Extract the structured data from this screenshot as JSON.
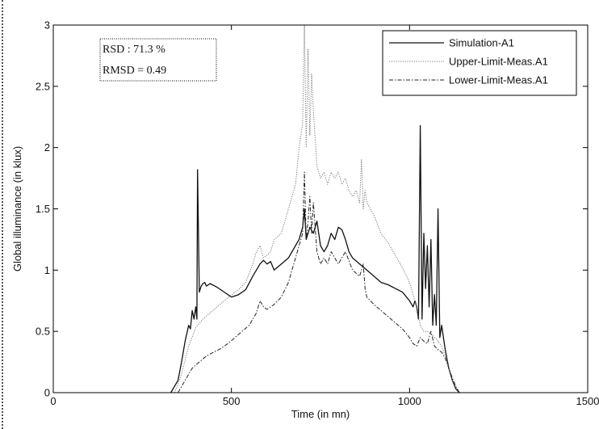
{
  "chart_data": {
    "type": "line",
    "title": "",
    "xlabel": "Time (in mn)",
    "ylabel": "Global illuminance (in klux)",
    "xlim": [
      0,
      1500
    ],
    "ylim": [
      0,
      3
    ],
    "xticks": [
      "0",
      "500",
      "1000",
      "1500"
    ],
    "yticks": [
      "0",
      "0.5",
      "1",
      "1.5",
      "2",
      "2.5",
      "3"
    ],
    "grid": false,
    "legend_position": "top-right",
    "annotations": [
      "RSD : 71.3 %",
      "RMSD = 0.49"
    ],
    "series": [
      {
        "name": "Simulation-A1",
        "style": "solid",
        "color": "#111111",
        "x": [
          330,
          350,
          360,
          370,
          380,
          385,
          390,
          395,
          400,
          403,
          405,
          410,
          415,
          420,
          425,
          428,
          430,
          440,
          460,
          480,
          500,
          520,
          540,
          560,
          570,
          580,
          590,
          600,
          610,
          620,
          640,
          660,
          680,
          690,
          700,
          705,
          710,
          720,
          730,
          740,
          750,
          760,
          770,
          780,
          790,
          800,
          810,
          820,
          830,
          840,
          860,
          880,
          900,
          920,
          940,
          960,
          980,
          1000,
          1010,
          1015,
          1020,
          1025,
          1030,
          1035,
          1040,
          1045,
          1050,
          1055,
          1060,
          1065,
          1070,
          1075,
          1080,
          1085,
          1090,
          1100,
          1110,
          1120,
          1130,
          1140
        ],
        "y": [
          0.0,
          0.1,
          0.25,
          0.42,
          0.55,
          0.52,
          0.67,
          0.6,
          0.7,
          0.6,
          1.82,
          0.82,
          0.87,
          0.89,
          0.9,
          0.88,
          0.87,
          0.89,
          0.86,
          0.82,
          0.78,
          0.8,
          0.84,
          0.95,
          1.0,
          1.05,
          1.08,
          1.05,
          1.07,
          1.0,
          1.05,
          1.1,
          1.2,
          1.25,
          1.35,
          1.5,
          1.25,
          1.35,
          1.3,
          1.4,
          1.2,
          1.15,
          1.2,
          1.3,
          1.25,
          1.35,
          1.33,
          1.25,
          1.15,
          1.1,
          1.05,
          1.0,
          0.95,
          0.9,
          0.88,
          0.85,
          0.82,
          0.75,
          0.7,
          0.75,
          0.7,
          0.6,
          2.18,
          0.6,
          1.3,
          0.85,
          1.2,
          0.7,
          1.25,
          0.55,
          0.8,
          0.55,
          1.5,
          0.45,
          0.55,
          0.35,
          0.2,
          0.1,
          0.03,
          0.0
        ]
      },
      {
        "name": "Upper-Limit-Meas.A1",
        "style": "dotted",
        "color": "#777777",
        "x": [
          340,
          360,
          380,
          400,
          420,
          440,
          460,
          480,
          500,
          520,
          540,
          560,
          570,
          580,
          590,
          600,
          610,
          620,
          640,
          660,
          680,
          690,
          700,
          705,
          710,
          715,
          720,
          725,
          730,
          740,
          750,
          760,
          770,
          780,
          790,
          800,
          810,
          820,
          830,
          840,
          850,
          860,
          865,
          870,
          875,
          880,
          900,
          920,
          940,
          960,
          980,
          1000,
          1010,
          1020,
          1030,
          1040,
          1050,
          1060,
          1070,
          1080,
          1090,
          1100,
          1110,
          1120,
          1130,
          1140
        ],
        "y": [
          0.0,
          0.15,
          0.38,
          0.53,
          0.6,
          0.65,
          0.7,
          0.75,
          0.8,
          0.84,
          0.9,
          1.05,
          1.15,
          1.2,
          1.1,
          1.12,
          1.15,
          1.25,
          1.3,
          1.5,
          1.7,
          2.0,
          2.2,
          3.0,
          2.0,
          2.8,
          2.1,
          2.6,
          2.3,
          1.85,
          1.75,
          1.8,
          1.7,
          1.8,
          1.75,
          1.8,
          1.7,
          1.75,
          1.65,
          1.6,
          1.65,
          1.55,
          1.9,
          1.5,
          1.65,
          1.55,
          1.45,
          1.3,
          1.22,
          1.12,
          1.02,
          0.9,
          0.8,
          0.7,
          0.55,
          0.5,
          0.5,
          0.48,
          0.45,
          0.42,
          0.38,
          0.3,
          0.2,
          0.1,
          0.04,
          0.0
        ]
      },
      {
        "name": "Lower-Limit-Meas.A1",
        "style": "dashdot",
        "color": "#222222",
        "x": [
          350,
          370,
          390,
          410,
          430,
          450,
          470,
          490,
          510,
          530,
          550,
          570,
          580,
          590,
          600,
          620,
          640,
          660,
          680,
          690,
          700,
          705,
          710,
          715,
          720,
          725,
          730,
          740,
          750,
          760,
          770,
          780,
          790,
          800,
          820,
          840,
          860,
          870,
          875,
          880,
          900,
          920,
          940,
          960,
          980,
          1000,
          1010,
          1020,
          1030,
          1040,
          1050,
          1060,
          1070,
          1080,
          1090,
          1100,
          1110,
          1120,
          1130,
          1140
        ],
        "y": [
          0.0,
          0.1,
          0.2,
          0.25,
          0.3,
          0.33,
          0.36,
          0.4,
          0.45,
          0.5,
          0.55,
          0.65,
          0.75,
          0.7,
          0.68,
          0.72,
          0.78,
          0.9,
          1.1,
          1.2,
          1.3,
          1.8,
          1.25,
          1.4,
          1.6,
          1.3,
          1.55,
          1.15,
          1.05,
          1.1,
          1.05,
          1.15,
          1.1,
          1.05,
          1.15,
          1.0,
          0.95,
          1.05,
          0.85,
          0.78,
          0.72,
          0.67,
          0.62,
          0.57,
          0.52,
          0.45,
          0.4,
          0.38,
          0.45,
          0.42,
          0.4,
          0.5,
          0.38,
          0.35,
          0.33,
          0.28,
          0.2,
          0.12,
          0.05,
          0.0
        ]
      }
    ]
  }
}
